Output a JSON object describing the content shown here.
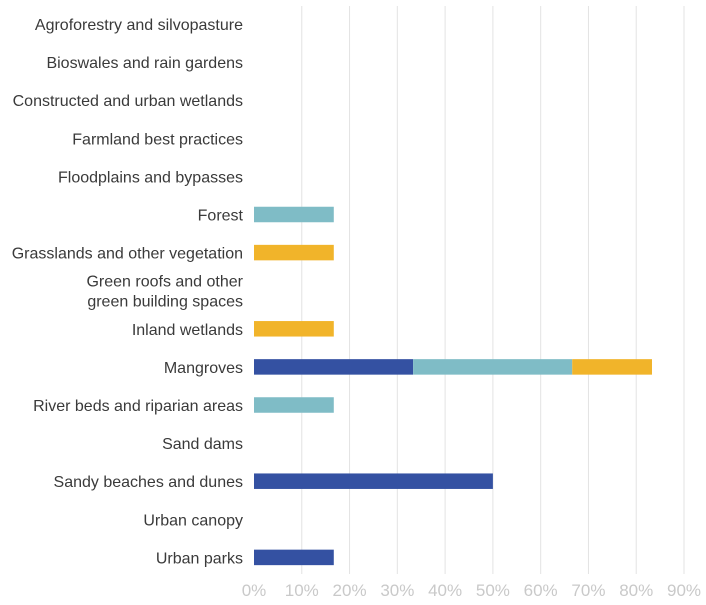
{
  "chart_data": {
    "type": "bar",
    "orientation": "horizontal",
    "stacked": true,
    "categories": [
      "Agroforestry and silvopasture",
      "Bioswales and rain gardens",
      "Constructed and urban wetlands",
      "Farmland best practices",
      "Floodplains and bypasses",
      "Forest",
      "Grasslands and other vegetation",
      [
        "Green roofs and other",
        "green building spaces"
      ],
      "Inland wetlands",
      "Mangroves",
      "River beds and riparian areas",
      "Sand dams",
      "Sandy beaches and dunes",
      "Urban canopy",
      "Urban parks"
    ],
    "series": [
      {
        "color": "#3451a2",
        "values": [
          0,
          0,
          0,
          0,
          0,
          0,
          0,
          0,
          0,
          33.3,
          0,
          0,
          50,
          0,
          16.7
        ]
      },
      {
        "color": "#7fbcc6",
        "values": [
          0,
          0,
          0,
          0,
          0,
          16.7,
          0,
          0,
          0,
          33.3,
          16.7,
          0,
          0,
          0,
          0
        ]
      },
      {
        "color": "#f1b42a",
        "values": [
          0,
          0,
          0,
          0,
          0,
          0,
          16.7,
          0,
          16.7,
          16.7,
          0,
          0,
          0,
          0,
          0
        ]
      }
    ],
    "xlim": [
      0,
      90
    ],
    "xticks": [
      0,
      10,
      20,
      30,
      40,
      50,
      60,
      70,
      80,
      90
    ],
    "xtick_labels": [
      "0%",
      "10%",
      "20%",
      "30%",
      "40%",
      "50%",
      "60%",
      "70%",
      "80%",
      "90%"
    ],
    "title": "",
    "xlabel": "",
    "ylabel": "",
    "grid": "vertical",
    "legend": "none"
  }
}
